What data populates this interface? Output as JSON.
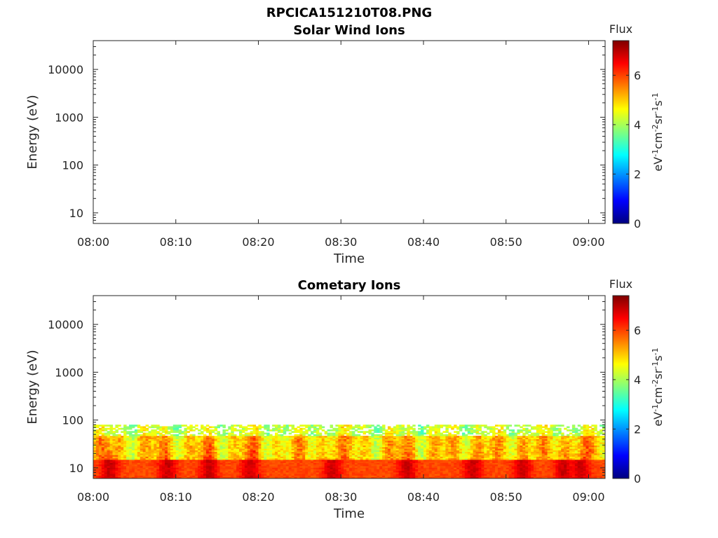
{
  "figure": {
    "title": "RPCICA151210T08.PNG"
  },
  "colors": {
    "colormap": [
      "#00007f",
      "#0000ff",
      "#007fff",
      "#00ffff",
      "#7fff7f",
      "#ffff00",
      "#ff7f00",
      "#ff0000",
      "#7f0000"
    ]
  },
  "chart_data": [
    {
      "type": "heatmap",
      "title": "Solar Wind Ions",
      "xlabel": "Time",
      "ylabel": "Energy (eV)",
      "x_ticks": [
        "08:00",
        "08:10",
        "08:20",
        "08:30",
        "08:40",
        "08:50",
        "09:00"
      ],
      "x_range_minutes": [
        0,
        62
      ],
      "y_scale": "log",
      "y_ticks": [
        "10",
        "100",
        "1000",
        "10000"
      ],
      "y_range": [
        6,
        40000
      ],
      "colorbar": {
        "title": "Flux",
        "ticks": [
          "0",
          "2",
          "4",
          "6"
        ],
        "range": [
          0,
          7.4
        ]
      },
      "data": []
    },
    {
      "type": "heatmap",
      "title": "Cometary Ions",
      "xlabel": "Time",
      "ylabel": "Energy (eV)",
      "x_ticks": [
        "08:00",
        "08:10",
        "08:20",
        "08:30",
        "08:40",
        "08:50",
        "09:00"
      ],
      "x_range_minutes": [
        0,
        62
      ],
      "y_scale": "log",
      "y_ticks": [
        "10",
        "100",
        "1000",
        "10000"
      ],
      "y_range": [
        6,
        40000
      ],
      "colorbar": {
        "title": "Flux",
        "ticks": [
          "0",
          "2",
          "4",
          "6"
        ],
        "range": [
          0,
          7.4
        ]
      },
      "energy_range_with_flux_eV": [
        6,
        80
      ],
      "peak_flux_minutes": [
        2,
        9,
        14,
        19,
        29,
        38,
        46,
        52,
        57,
        59
      ],
      "data": "flux 5-7 between 6 and 80 eV for the full interval; highest near the lowest energies"
    }
  ]
}
